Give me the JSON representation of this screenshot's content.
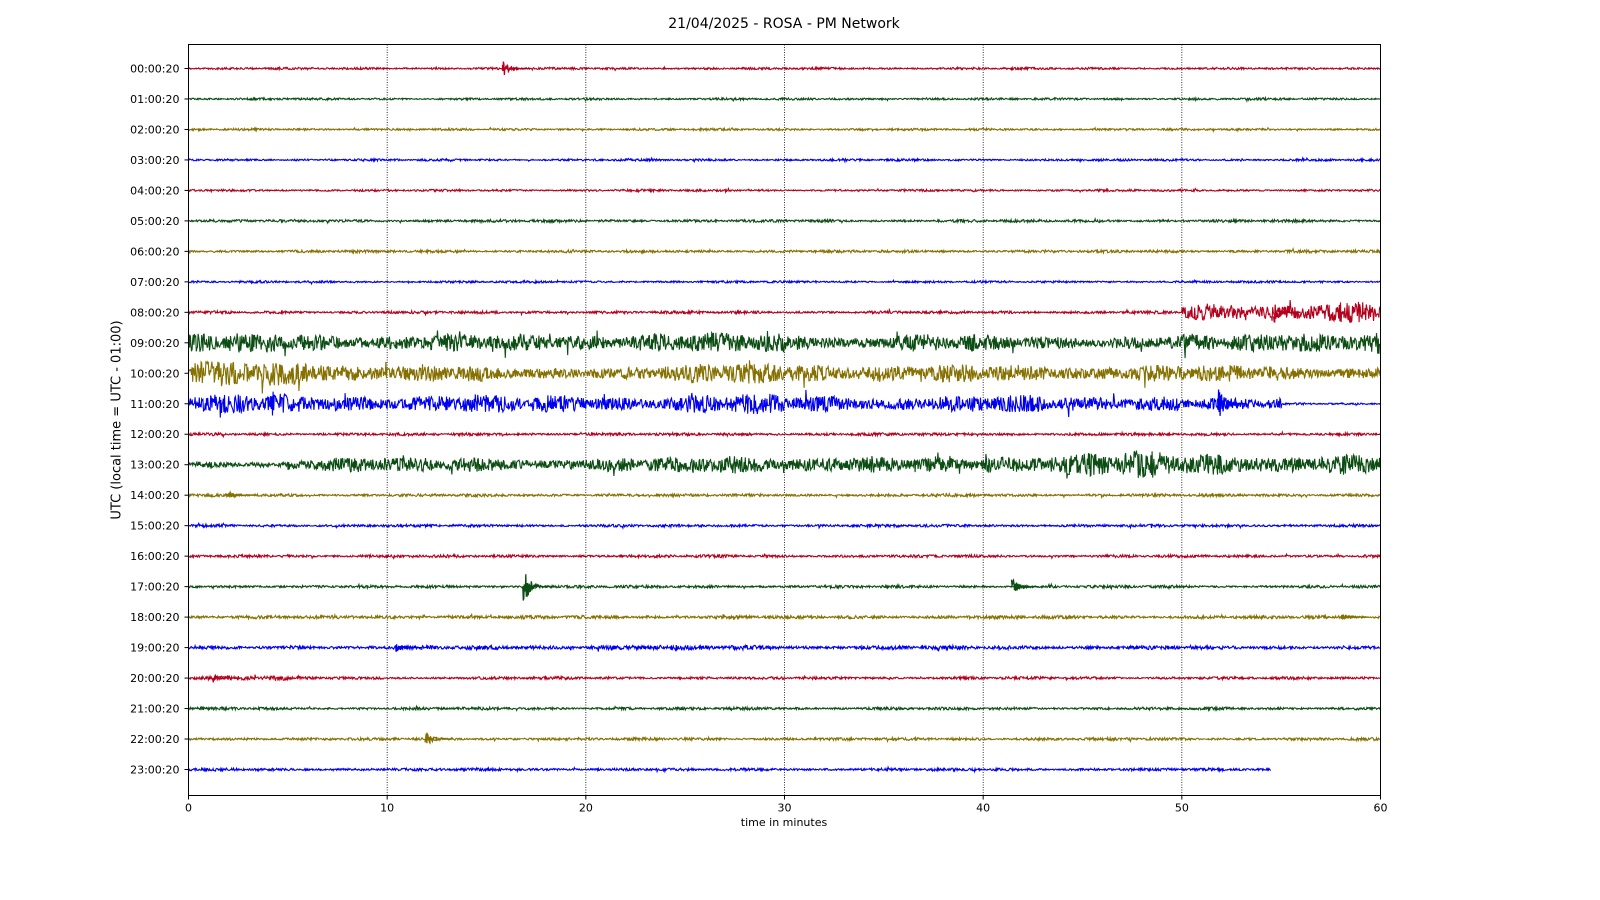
{
  "chart_data": {
    "type": "helicorder",
    "title": "21/04/2025 - ROSA - PM Network",
    "xlabel": "time in minutes",
    "ylabel": "UTC (local time = UTC - 01:00)",
    "xlim": [
      0,
      60
    ],
    "xticks": [
      0,
      10,
      20,
      30,
      40,
      50,
      60
    ],
    "grid": true,
    "series": [
      {
        "name": "00:00:20",
        "color": "#b4001c",
        "end": 60,
        "envelope": [
          0.04,
          0.04,
          0.04,
          0.04,
          0.04,
          0.04,
          0.04,
          0.04,
          0.04,
          0.04,
          0.04,
          0.04
        ],
        "events": [
          [
            15.8,
            0.3
          ]
        ]
      },
      {
        "name": "01:00:20",
        "color": "#0b4d12",
        "end": 60,
        "envelope": [
          0.04,
          0.04,
          0.04,
          0.04,
          0.04,
          0.04,
          0.04,
          0.04,
          0.04,
          0.04,
          0.04,
          0.04
        ],
        "events": []
      },
      {
        "name": "02:00:20",
        "color": "#857000",
        "end": 60,
        "envelope": [
          0.04,
          0.04,
          0.04,
          0.04,
          0.04,
          0.04,
          0.04,
          0.04,
          0.04,
          0.04,
          0.04,
          0.04
        ],
        "events": []
      },
      {
        "name": "03:00:20",
        "color": "#0000f0",
        "end": 60,
        "envelope": [
          0.04,
          0.04,
          0.04,
          0.04,
          0.04,
          0.04,
          0.04,
          0.04,
          0.04,
          0.04,
          0.04,
          0.04
        ],
        "events": []
      },
      {
        "name": "04:00:20",
        "color": "#b4001c",
        "end": 60,
        "envelope": [
          0.04,
          0.04,
          0.04,
          0.04,
          0.04,
          0.04,
          0.04,
          0.04,
          0.04,
          0.04,
          0.04,
          0.04
        ],
        "events": []
      },
      {
        "name": "05:00:20",
        "color": "#0b4d12",
        "end": 60,
        "envelope": [
          0.05,
          0.05,
          0.05,
          0.05,
          0.05,
          0.05,
          0.05,
          0.05,
          0.05,
          0.05,
          0.05,
          0.05
        ],
        "events": []
      },
      {
        "name": "06:00:20",
        "color": "#857000",
        "end": 60,
        "envelope": [
          0.05,
          0.05,
          0.05,
          0.05,
          0.05,
          0.05,
          0.05,
          0.05,
          0.05,
          0.05,
          0.05,
          0.05
        ],
        "events": []
      },
      {
        "name": "07:00:20",
        "color": "#0000f0",
        "end": 60,
        "envelope": [
          0.04,
          0.04,
          0.04,
          0.04,
          0.04,
          0.04,
          0.04,
          0.04,
          0.04,
          0.04,
          0.04,
          0.04
        ],
        "events": []
      },
      {
        "name": "08:00:20",
        "color": "#b4001c",
        "end": 60,
        "envelope": [
          0.05,
          0.05,
          0.05,
          0.05,
          0.05,
          0.05,
          0.05,
          0.05,
          0.05,
          0.05,
          0.3,
          0.4
        ],
        "events": [
          [
            54.6,
            0.5
          ]
        ]
      },
      {
        "name": "09:00:20",
        "color": "#0b4d12",
        "end": 60,
        "envelope": [
          0.35,
          0.3,
          0.3,
          0.3,
          0.35,
          0.35,
          0.3,
          0.3,
          0.25,
          0.25,
          0.3,
          0.45
        ],
        "events": []
      },
      {
        "name": "10:00:20",
        "color": "#857000",
        "end": 60,
        "envelope": [
          0.45,
          0.4,
          0.3,
          0.2,
          0.3,
          0.35,
          0.35,
          0.3,
          0.3,
          0.3,
          0.3,
          0.25
        ],
        "events": []
      },
      {
        "name": "11:00:20",
        "color": "#0000f0",
        "end": 60,
        "envelope": [
          0.35,
          0.3,
          0.35,
          0.3,
          0.3,
          0.35,
          0.3,
          0.3,
          0.3,
          0.3,
          0.2,
          0.04
        ],
        "events": [
          [
            51.8,
            0.8
          ]
        ]
      },
      {
        "name": "12:00:20",
        "color": "#b4001c",
        "end": 60,
        "envelope": [
          0.05,
          0.05,
          0.05,
          0.05,
          0.05,
          0.05,
          0.05,
          0.05,
          0.05,
          0.05,
          0.05,
          0.05
        ],
        "events": []
      },
      {
        "name": "13:00:20",
        "color": "#0b4d12",
        "end": 60,
        "envelope": [
          0.1,
          0.3,
          0.25,
          0.25,
          0.25,
          0.35,
          0.3,
          0.25,
          0.4,
          0.45,
          0.4,
          0.35
        ],
        "events": []
      },
      {
        "name": "14:00:20",
        "color": "#857000",
        "end": 60,
        "envelope": [
          0.05,
          0.05,
          0.05,
          0.05,
          0.05,
          0.05,
          0.05,
          0.05,
          0.05,
          0.05,
          0.05,
          0.05
        ],
        "events": [
          [
            2.0,
            0.15
          ]
        ]
      },
      {
        "name": "15:00:20",
        "color": "#0000f0",
        "end": 60,
        "envelope": [
          0.05,
          0.05,
          0.05,
          0.05,
          0.05,
          0.05,
          0.05,
          0.05,
          0.05,
          0.05,
          0.05,
          0.05
        ],
        "events": []
      },
      {
        "name": "16:00:20",
        "color": "#b4001c",
        "end": 60,
        "envelope": [
          0.05,
          0.05,
          0.05,
          0.05,
          0.05,
          0.05,
          0.05,
          0.05,
          0.05,
          0.05,
          0.05,
          0.05
        ],
        "events": []
      },
      {
        "name": "17:00:20",
        "color": "#0b4d12",
        "end": 60,
        "envelope": [
          0.05,
          0.05,
          0.05,
          0.05,
          0.05,
          0.05,
          0.05,
          0.05,
          0.05,
          0.05,
          0.05,
          0.05
        ],
        "events": [
          [
            16.8,
            0.8
          ],
          [
            41.4,
            0.5
          ]
        ]
      },
      {
        "name": "18:00:20",
        "color": "#857000",
        "end": 60,
        "envelope": [
          0.06,
          0.06,
          0.06,
          0.06,
          0.06,
          0.06,
          0.06,
          0.06,
          0.06,
          0.06,
          0.06,
          0.06
        ],
        "events": [
          [
            58.0,
            0.15
          ]
        ]
      },
      {
        "name": "19:00:20",
        "color": "#0000f0",
        "end": 60,
        "envelope": [
          0.05,
          0.07,
          0.07,
          0.07,
          0.1,
          0.08,
          0.07,
          0.07,
          0.07,
          0.07,
          0.06,
          0.06
        ],
        "events": [
          [
            10.4,
            0.2
          ]
        ]
      },
      {
        "name": "20:00:20",
        "color": "#b4001c",
        "end": 60,
        "envelope": [
          0.08,
          0.05,
          0.05,
          0.05,
          0.05,
          0.05,
          0.05,
          0.05,
          0.05,
          0.05,
          0.05,
          0.05
        ],
        "events": [
          [
            1.2,
            0.2
          ]
        ]
      },
      {
        "name": "21:00:20",
        "color": "#0b4d12",
        "end": 60,
        "envelope": [
          0.05,
          0.05,
          0.05,
          0.05,
          0.05,
          0.05,
          0.05,
          0.05,
          0.05,
          0.05,
          0.05,
          0.05
        ],
        "events": []
      },
      {
        "name": "22:00:20",
        "color": "#857000",
        "end": 60,
        "envelope": [
          0.05,
          0.05,
          0.05,
          0.05,
          0.05,
          0.05,
          0.05,
          0.05,
          0.05,
          0.05,
          0.05,
          0.05
        ],
        "events": [
          [
            11.9,
            0.3
          ]
        ]
      },
      {
        "name": "23:00:20",
        "color": "#0000f0",
        "end": 54.5,
        "envelope": [
          0.05,
          0.05,
          0.05,
          0.05,
          0.05,
          0.05,
          0.05,
          0.05,
          0.05,
          0.05,
          0.05
        ],
        "events": []
      }
    ]
  }
}
